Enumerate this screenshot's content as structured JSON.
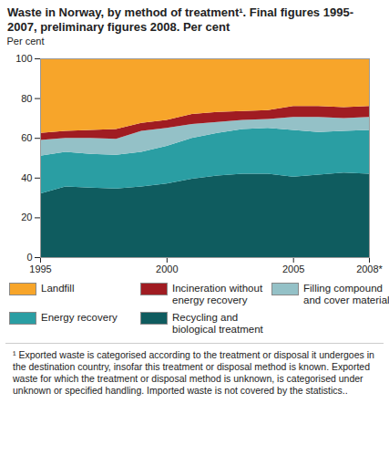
{
  "chart_data": {
    "type": "area",
    "stacked": true,
    "title": "Waste in Norway, by method of treatment¹. Final figures 1995-2007, preliminary figures 2008. Per cent",
    "y_label": "Per cent",
    "footnote": "¹ Exported waste is categorised according to the treatment or disposal it undergoes in the destination country, insofar this treatment or disposal method is known. Exported waste for which the treatment or disposal method is unknown, is categorised under unknown or specified handling. Imported waste is not covered by the statistics..",
    "x": [
      1995,
      1996,
      1997,
      1998,
      1999,
      2000,
      2001,
      2002,
      2003,
      2004,
      2005,
      2006,
      2007,
      2008
    ],
    "xlim": [
      1995,
      2008
    ],
    "xticks": [
      1995,
      2000,
      2005,
      {
        "value": 2008,
        "label": "2008*"
      }
    ],
    "ylim": [
      0,
      100
    ],
    "yticks": [
      0,
      20,
      40,
      60,
      80,
      100
    ],
    "grid": true,
    "series": [
      {
        "name": "Recycling and biological treatment",
        "color": "#0f5c5f",
        "values": [
          32,
          35.5,
          35,
          34.5,
          35.5,
          37,
          39.5,
          41,
          42,
          42,
          40.5,
          41.5,
          42.5,
          42
        ]
      },
      {
        "name": "Energy recovery",
        "color": "#2a9ea3",
        "values": [
          19,
          17.5,
          17,
          17,
          17.5,
          19,
          20.5,
          21.5,
          22.5,
          23,
          23.5,
          21.5,
          21,
          22
        ]
      },
      {
        "name": "Filling compound and cover material",
        "color": "#94c1c7",
        "values": [
          8,
          7,
          8,
          8,
          10.5,
          9,
          7,
          5.5,
          4.5,
          4.5,
          6.5,
          7.5,
          6.5,
          6.5
        ]
      },
      {
        "name": "Incineration without energy recovery",
        "color": "#a01c22",
        "values": [
          3.5,
          3.5,
          4,
          5,
          4,
          4,
          5,
          5,
          4.5,
          4.5,
          5.5,
          5.5,
          5.5,
          5.5
        ]
      },
      {
        "name": "Landfill",
        "color": "#f7a52a",
        "values": [
          37.5,
          36.5,
          36,
          35.5,
          32.5,
          31,
          28,
          27,
          26.5,
          26,
          24,
          24,
          24.5,
          24
        ]
      }
    ]
  }
}
